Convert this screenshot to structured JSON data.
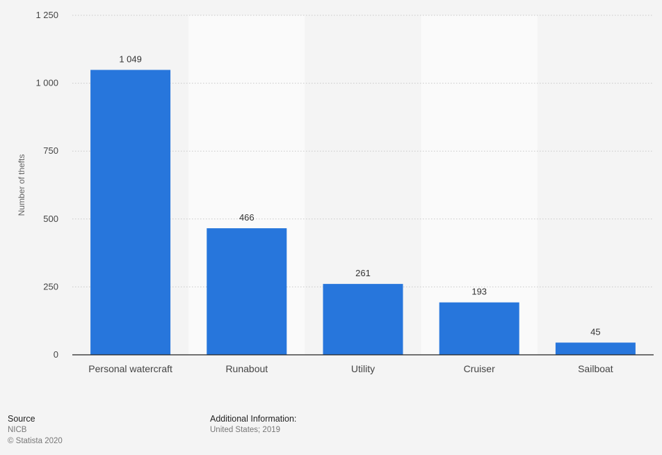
{
  "chart_data": {
    "type": "bar",
    "categories": [
      "Personal watercraft",
      "Runabout",
      "Utility",
      "Cruiser",
      "Sailboat"
    ],
    "values": [
      1049,
      466,
      261,
      193,
      45
    ],
    "value_labels": [
      "1 049",
      "466",
      "261",
      "193",
      "45"
    ],
    "ylabel": "Number of thefts",
    "ylim": [
      0,
      1250
    ],
    "yticks": [
      0,
      250,
      500,
      750,
      1000,
      1250
    ],
    "ytick_labels": [
      "0",
      "250",
      "500",
      "750",
      "1 000",
      "1 250"
    ],
    "bar_color": "#2776dc",
    "grid": true,
    "grid_style": "dotted"
  },
  "footer": {
    "source_heading": "Source",
    "source_name": "NICB",
    "copyright": "© Statista 2020",
    "info_heading": "Additional Information:",
    "info_text": "United States; 2019"
  },
  "colors": {
    "background": "#f4f4f4",
    "alt_band": "#fafafa",
    "bar": "#2776dc",
    "axis": "#222222"
  }
}
